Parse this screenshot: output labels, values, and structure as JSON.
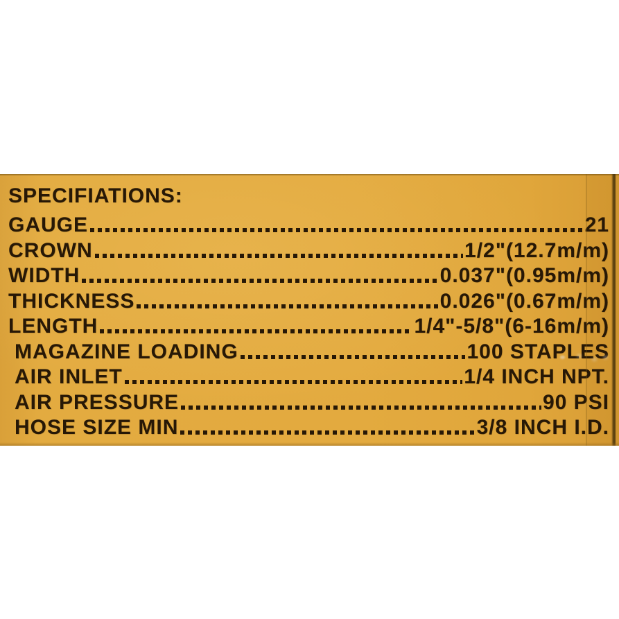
{
  "label": {
    "title": "SPECIFIATIONS:",
    "rows": [
      {
        "name": "GAUGE",
        "value": "21"
      },
      {
        "name": "CROWN",
        "value": "1/2\"(12.7m/m)"
      },
      {
        "name": "WIDTH",
        "value": "0.037\"(0.95m/m)"
      },
      {
        "name": "THICKNESS",
        "value": "0.026\"(0.67m/m)"
      },
      {
        "name": "LENGTH",
        "value": "1/4\"-5/8\"(6-16m/m)"
      },
      {
        "name": "MAGAZINE LOADING",
        "value": "100 STAPLES"
      },
      {
        "name": "AIR INLET",
        "value": "1/4 INCH NPT."
      },
      {
        "name": "AIR PRESSURE",
        "value": "90 PSI"
      },
      {
        "name": "HOSE SIZE MIN",
        "value": "3/8 INCH I.D."
      }
    ],
    "colors": {
      "label_yellow": "#E2AA3E",
      "label_yellow_dark": "#D1962F",
      "text_dark": "#271806",
      "edge_shadow": "#4B340A",
      "background_white": "#FFFFFF"
    }
  }
}
